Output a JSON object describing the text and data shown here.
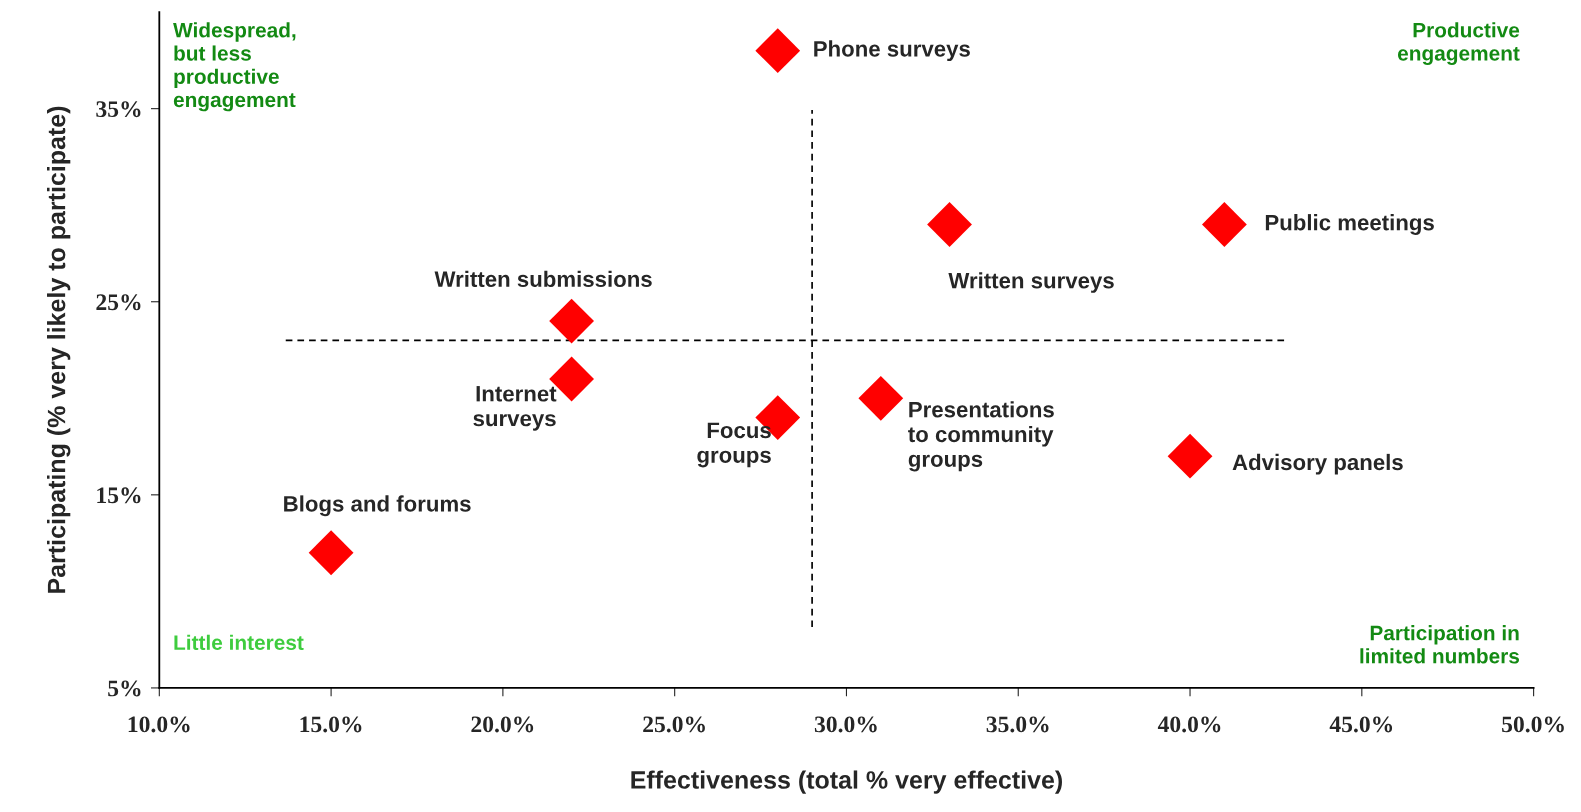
{
  "chart_data": {
    "type": "scatter",
    "xlabel": "Effectiveness (total % very effective)",
    "ylabel": "Participating (% very likely to participate)",
    "xlim": [
      10,
      50
    ],
    "ylim": [
      5,
      40
    ],
    "xticks": [
      {
        "value": 10,
        "label": "10.0%"
      },
      {
        "value": 15,
        "label": "15.0%"
      },
      {
        "value": 20,
        "label": "20.0%"
      },
      {
        "value": 25,
        "label": "25.0%"
      },
      {
        "value": 30,
        "label": "30.0%"
      },
      {
        "value": 35,
        "label": "35.0%"
      },
      {
        "value": 40,
        "label": "40.0%"
      },
      {
        "value": 45,
        "label": "45.0%"
      },
      {
        "value": 50,
        "label": "50.0%"
      }
    ],
    "yticks": [
      {
        "value": 5,
        "label": "5%"
      },
      {
        "value": 15,
        "label": "15%"
      },
      {
        "value": 25,
        "label": "25%"
      },
      {
        "value": 35,
        "label": "35%"
      }
    ],
    "marker": "diamond",
    "grid": false,
    "series": [
      {
        "name": "Phone surveys",
        "color": "#ff0000",
        "x": [
          28
        ],
        "values": [
          38
        ]
      },
      {
        "name": "Written surveys",
        "color": "#ff0000",
        "x": [
          33
        ],
        "values": [
          29
        ]
      },
      {
        "name": "Public meetings",
        "color": "#ff0000",
        "x": [
          41
        ],
        "values": [
          29
        ]
      },
      {
        "name": "Written submissions",
        "color": "#ff0000",
        "x": [
          22
        ],
        "values": [
          24
        ]
      },
      {
        "name": "Internet\nsurveys",
        "color": "#ff0000",
        "x": [
          22
        ],
        "values": [
          21
        ]
      },
      {
        "name": "Focus\ngroups",
        "color": "#ff0000",
        "x": [
          28
        ],
        "values": [
          19
        ]
      },
      {
        "name": "Presentations\nto community\ngroups",
        "color": "#ff0000",
        "x": [
          31
        ],
        "values": [
          20
        ]
      },
      {
        "name": "Advisory panels",
        "color": "#ff0000",
        "x": [
          40
        ],
        "values": [
          17
        ]
      },
      {
        "name": "Blogs and forums",
        "color": "#ff0000",
        "x": [
          15
        ],
        "values": [
          12
        ]
      }
    ],
    "ref_lines": [
      {
        "axis": "x",
        "value": 29,
        "line_style": "dashed",
        "color": "#000000"
      },
      {
        "axis": "y",
        "value": 23,
        "line_style": "dashed",
        "color": "#000000"
      }
    ],
    "annotations": [
      "Widespread,\nbut less\nproductive\nengagement",
      "Productive\nengagement",
      "Little interest",
      "Participation in\nlimited numbers"
    ]
  }
}
